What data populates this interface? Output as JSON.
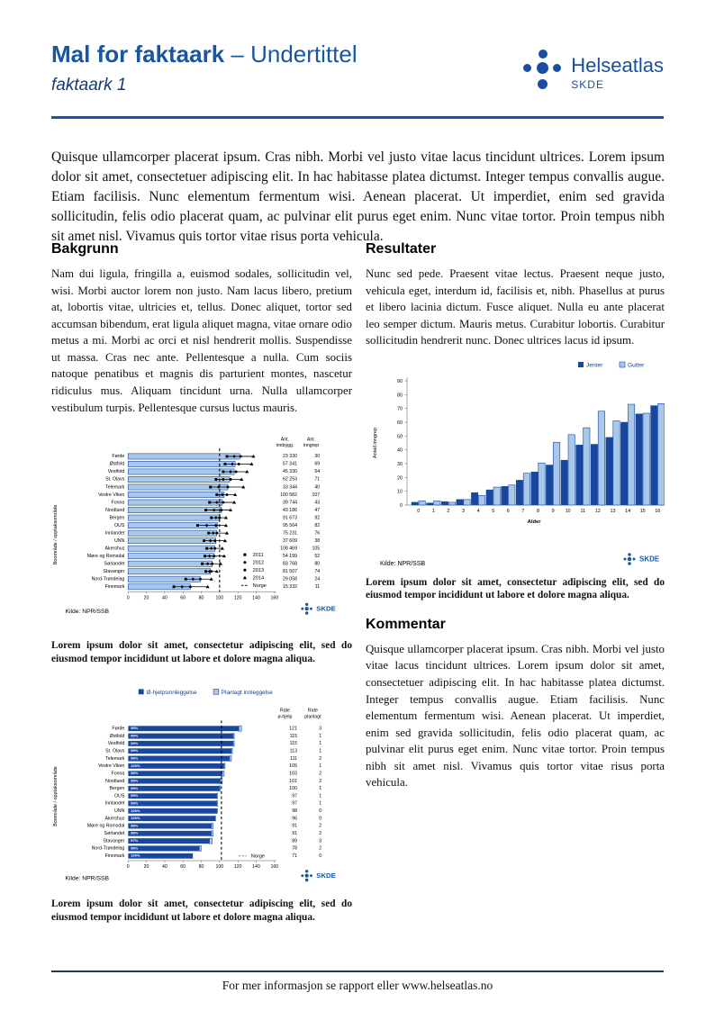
{
  "header": {
    "title": "Mal for faktaark",
    "subtitle": " – Undertittel",
    "page_label": "faktaark 1",
    "logo_brand": "Helseatlas",
    "logo_org": "SKDE"
  },
  "intro": "Quisque ullamcorper placerat ipsum. Cras nibh. Morbi vel justo vitae lacus tincidunt ultrices. Lorem ipsum dolor sit amet, consectetuer adipiscing elit. In hac habitasse platea dictumst. Integer tempus convallis augue. Etiam facilisis. Nunc elementum fermentum wisi. Aenean placerat. Ut imperdiet, enim sed gravida sollicitudin, felis odio placerat quam, ac pulvinar elit purus eget enim. Nunc vitae tortor. Proin tempus nibh sit amet nisl. Vivamus quis tortor vitae risus porta vehicula.",
  "sections": {
    "bakgrunn": {
      "heading": "Bakgrunn",
      "body": "Nam dui ligula, fringilla a, euismod sodales, sollicitudin vel, wisi. Morbi auctor lorem non justo. Nam lacus libero, pretium at, lobortis vitae, ultricies et, tellus. Donec aliquet, tortor sed accumsan bibendum, erat ligula aliquet magna, vitae ornare odio metus a mi. Morbi ac orci et nisl hendrerit mollis. Suspendisse ut massa. Cras nec ante. Pellentesque a nulla. Cum sociis natoque penatibus et magnis dis parturient montes, nascetur ridiculus mus. Aliquam tincidunt urna. Nulla ullamcorper vestibulum turpis. Pellentesque cursus luctus mauris."
    },
    "resultater": {
      "heading": "Resultater",
      "body": "Nunc sed pede. Praesent vitae lectus. Praesent neque justo, vehicula eget, interdum id, facilisis et, nibh. Phasellus at purus et libero lacinia dictum. Fusce aliquet. Nulla eu ante placerat leo semper dictum. Mauris metus. Curabitur lobortis. Curabitur sollicitudin hendrerit nunc. Donec ultrices lacus id ipsum."
    },
    "kommentar": {
      "heading": "Kommentar",
      "body": "Quisque ullamcorper placerat ipsum. Cras nibh. Morbi vel justo vitae lacus tincidunt ultrices. Lorem ipsum dolor sit amet, consectetuer adipiscing elit. In hac habitasse platea dictumst. Integer tempus convallis augue. Etiam facilisis. Nunc elementum fermentum wisi. Aenean placerat. Ut imperdiet, enim sed gravida sollicitudin, felis odio placerat quam, ac pulvinar elit purus eget enim. Nunc vitae tortor. Proin tempus nibh sit amet nisl. Vivamus quis tortor vitae risus porta vehicula."
    }
  },
  "captions": {
    "chart1": "Lorem ipsum dolor sit amet, consectetur adipiscing elit, sed do eiusmod tempor incididunt ut labore et dolore magna aliqua.",
    "chart2": "Lorem ipsum dolor sit amet, consectetur adipiscing elit, sed do eiusmod tempor incididunt ut labore et dolore magna aliqua.",
    "chart3": "Lorem ipsum dolor sit amet, consectetur adipiscing elit, sed do eiusmod tempor incididunt ut labore et dolore magna aliqua."
  },
  "footer": {
    "text": "For mer informasjon se rapport eller www.helseatlas.no"
  },
  "colors": {
    "brand_blue": "#1a56a0",
    "dark_bar": "#17479e",
    "light_bar": "#a9c7e9",
    "navy_text": "#1a3f7a"
  },
  "chart_data": [
    {
      "type": "bar",
      "orientation": "horizontal",
      "title": "",
      "ylabel": "Boområde / opptaksområde",
      "xlim": [
        0,
        160
      ],
      "xticks": [
        0,
        20,
        40,
        60,
        80,
        100,
        120,
        140,
        160
      ],
      "categories": [
        "Førde",
        "Østfold",
        "Vestfold",
        "St. Olavs",
        "Telemark",
        "Vestre Viken",
        "Fonna",
        "Nordland",
        "Bergen",
        "OUS",
        "Innlandet",
        "UNN",
        "Akershus",
        "Møre og Romsdal",
        "Sørlandet",
        "Stavanger",
        "Nord-Trøndelag",
        "Finnmark"
      ],
      "values": [
        122,
        117,
        116,
        111,
        109,
        105,
        103,
        102,
        100,
        98,
        97,
        96,
        95,
        94,
        92,
        90,
        79,
        68
      ],
      "year_points": [
        [
          108,
          116,
          123,
          137
        ],
        [
          106,
          114,
          121,
          135
        ],
        [
          104,
          112,
          118,
          130
        ],
        [
          96,
          104,
          112,
          124
        ],
        [
          90,
          99,
          109,
          126
        ],
        [
          97,
          103,
          108,
          117
        ],
        [
          89,
          97,
          104,
          116
        ],
        [
          85,
          94,
          102,
          112
        ],
        [
          91,
          96,
          100,
          107
        ],
        [
          76,
          86,
          96,
          107
        ],
        [
          88,
          93,
          97,
          108
        ],
        [
          83,
          90,
          95,
          106
        ],
        [
          86,
          91,
          95,
          103
        ],
        [
          84,
          89,
          94,
          105
        ],
        [
          81,
          87,
          92,
          101
        ],
        [
          85,
          89,
          91,
          97
        ],
        [
          63,
          71,
          79,
          91
        ],
        [
          50,
          59,
          68,
          87
        ]
      ],
      "legend": [
        "2011",
        "2012",
        "2013",
        "2014",
        "Norge"
      ],
      "norge_value": 100,
      "table_headers": [
        "Ant. innbygg.",
        "Ant. inngrep"
      ],
      "table_col1": [
        "23 330",
        "57 341",
        "45 330",
        "62 253",
        "33 344",
        "100 582",
        "39 744",
        "43 186",
        "91 673",
        "95 564",
        "75 231",
        "37 609",
        "108 469",
        "54 199",
        "83 768",
        "81 507",
        "29 058",
        "15 332"
      ],
      "table_col2": [
        "30",
        "69",
        "54",
        "71",
        "40",
        "107",
        "43",
        "47",
        "92",
        "82",
        "76",
        "38",
        "105",
        "52",
        "80",
        "74",
        "24",
        "11"
      ],
      "source": "Kilde: NPR/SSB",
      "logo": "SKDE"
    },
    {
      "type": "bar",
      "orientation": "vertical",
      "title": "",
      "xlabel": "Alder",
      "ylabel": "Antall inngrep",
      "ylim": [
        0,
        90
      ],
      "yticks": [
        0,
        10,
        20,
        30,
        40,
        50,
        60,
        70,
        80,
        90
      ],
      "categories": [
        "0",
        "1",
        "2",
        "3",
        "4",
        "5",
        "6",
        "7",
        "8",
        "9",
        "10",
        "11",
        "12",
        "13",
        "14",
        "15",
        "16"
      ],
      "series": [
        {
          "name": "Jenter",
          "values": [
            2,
            1.5,
            2.5,
            4,
            9,
            11,
            13.5,
            18,
            24,
            29,
            32.5,
            43.5,
            44,
            49,
            60,
            66,
            72
          ]
        },
        {
          "name": "Gutter",
          "values": [
            3,
            3,
            2,
            4,
            7,
            13,
            14.5,
            23,
            30.5,
            45.5,
            51,
            56,
            68,
            61,
            73,
            66.5,
            73.5
          ]
        }
      ],
      "legend_position": "top-right",
      "source": "Kilde: NPR/SSB",
      "logo": "SKDE"
    },
    {
      "type": "bar",
      "orientation": "horizontal-stacked",
      "title": "",
      "ylabel": "Boområde / opptaksområde",
      "xlim": [
        0,
        160
      ],
      "xticks": [
        0,
        20,
        40,
        60,
        80,
        100,
        120,
        140,
        160
      ],
      "categories": [
        "Førde",
        "Østfold",
        "Vestfold",
        "St. Olavs",
        "Telemark",
        "Vestre Viken",
        "Fonna",
        "Nordland",
        "Bergen",
        "OUS",
        "Innlandet",
        "UNN",
        "Akershus",
        "Møre og Romsdal",
        "Sørlandet",
        "Stavanger",
        "Nord-Trøndelag",
        "Finnmark"
      ],
      "series": [
        {
          "name": "Ø-hjelpsinnleggelse",
          "values": [
            121,
            115,
            115,
            113,
            111,
            105,
            103,
            101,
            100,
            97,
            97,
            98,
            96,
            91,
            91,
            89,
            78,
            71
          ]
        },
        {
          "name": "Planlagt innleggelse",
          "values": [
            3,
            1,
            1,
            1,
            2,
            1,
            2,
            2,
            1,
            1,
            1,
            0,
            0,
            2,
            2,
            3,
            2,
            0
          ]
        }
      ],
      "bar_labels": [
        "98%",
        "99%",
        "99%",
        "99%",
        "98%",
        "100%",
        "98%",
        "98%",
        "99%",
        "99%",
        "99%",
        "100%",
        "100%",
        "98%",
        "98%",
        "97%",
        "98%",
        "100%"
      ],
      "norge_label": "Norge",
      "norge_value": 102,
      "table_headers": [
        "Rate ø-hjelp",
        "Rate planlagt"
      ],
      "table_col1": [
        "121",
        "115",
        "115",
        "113",
        "111",
        "105",
        "103",
        "101",
        "100",
        "97",
        "97",
        "98",
        "96",
        "91",
        "91",
        "89",
        "78",
        "71"
      ],
      "table_col2": [
        "3",
        "1",
        "1",
        "1",
        "2",
        "1",
        "2",
        "2",
        "1",
        "1",
        "1",
        "0",
        "0",
        "2",
        "2",
        "3",
        "2",
        "0"
      ],
      "source": "Kilde: NPR/SSB",
      "logo": "SKDE"
    }
  ]
}
